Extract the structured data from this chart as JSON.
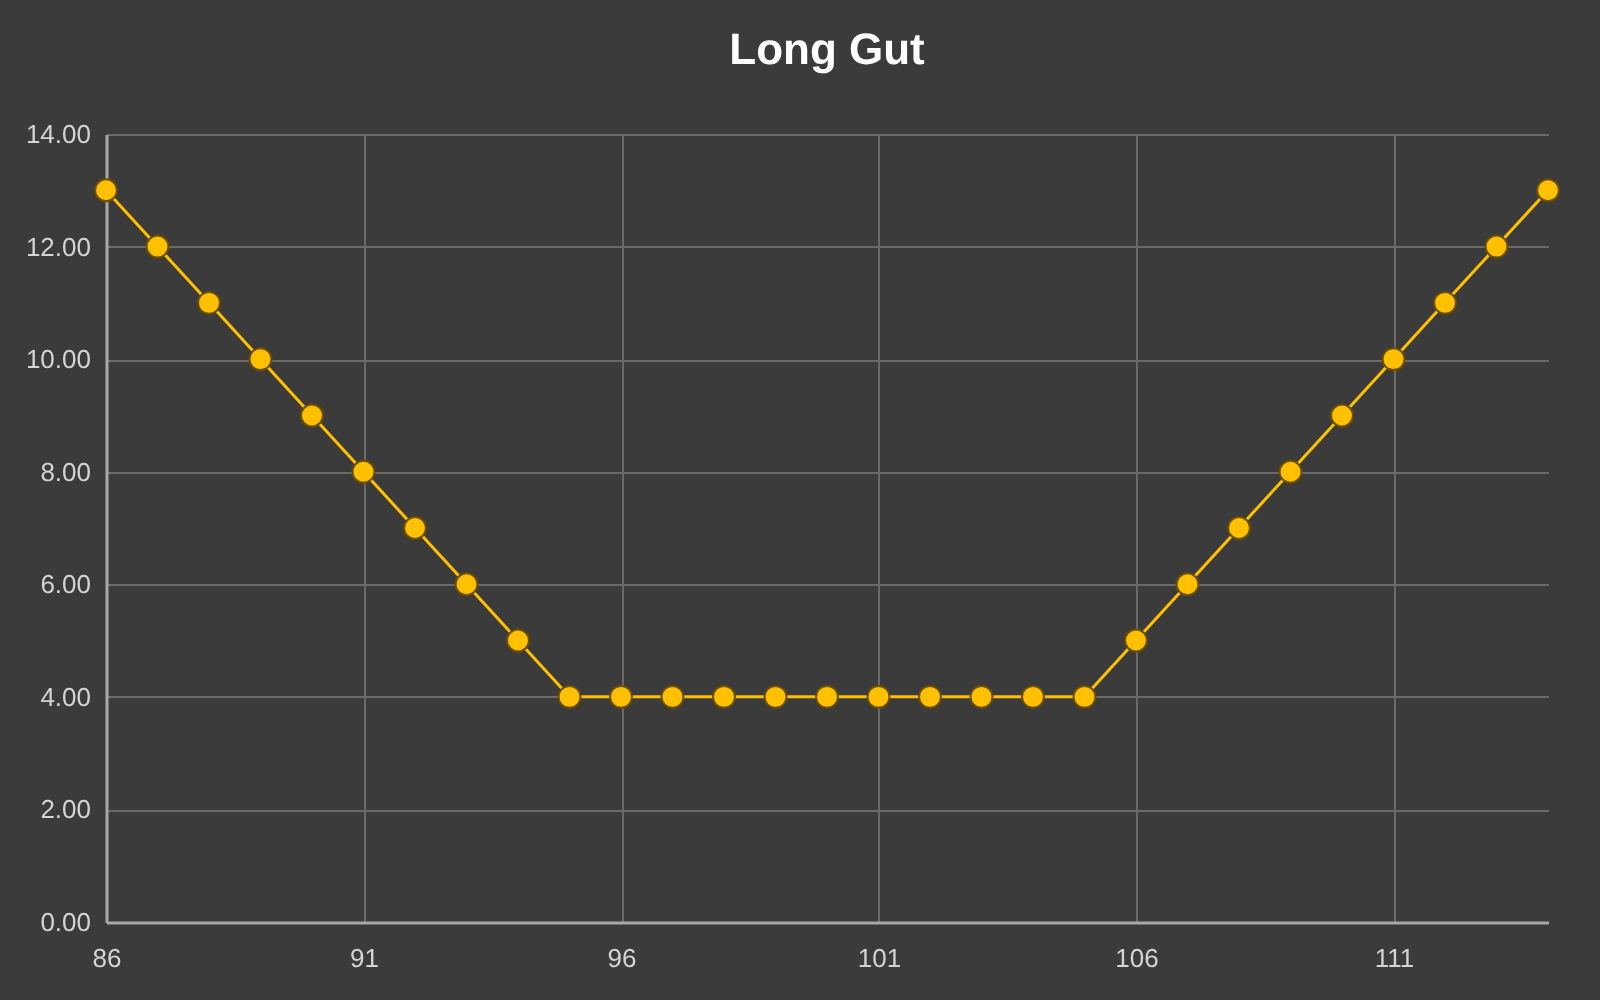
{
  "chart_data": {
    "type": "line",
    "title": "Long Gut",
    "x": [
      86,
      87,
      88,
      89,
      90,
      91,
      92,
      93,
      94,
      95,
      96,
      97,
      98,
      99,
      100,
      101,
      102,
      103,
      104,
      105,
      106,
      107,
      108,
      109,
      110,
      111,
      112,
      113,
      114
    ],
    "series": [
      {
        "color": "#ffc000",
        "values": [
          13,
          12,
          11,
          10,
          9,
          8,
          7,
          6,
          5,
          4,
          4,
          4,
          4,
          4,
          4,
          4,
          4,
          4,
          4,
          4,
          5,
          6,
          7,
          8,
          9,
          10,
          11,
          12,
          13
        ]
      }
    ],
    "xlim": [
      86,
      114
    ],
    "xticks": [
      86,
      91,
      96,
      101,
      106,
      111
    ],
    "ylim": [
      0,
      14
    ],
    "yticks": [
      {
        "value": 0,
        "label": "0.00"
      },
      {
        "value": 2,
        "label": "2.00"
      },
      {
        "value": 4,
        "label": "4.00"
      },
      {
        "value": 6,
        "label": "6.00"
      },
      {
        "value": 8,
        "label": "8.00"
      },
      {
        "value": 10,
        "label": "10.00"
      },
      {
        "value": 12,
        "label": "12.00"
      },
      {
        "value": 14,
        "label": "14.00"
      }
    ],
    "grid": true,
    "marker": "circle",
    "line_style": "solid"
  }
}
